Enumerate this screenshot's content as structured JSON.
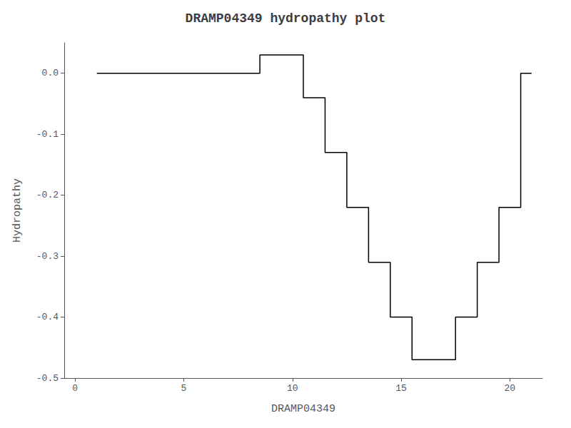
{
  "chart_data": {
    "type": "step",
    "title": "DRAMP04349 hydropathy plot",
    "xlabel": "DRAMP04349",
    "ylabel": "Hydropathy",
    "x": [
      1,
      2,
      3,
      4,
      5,
      6,
      7,
      8,
      9,
      10,
      11,
      12,
      13,
      14,
      15,
      16,
      17,
      18,
      19,
      20,
      21
    ],
    "values": [
      0.0,
      0.0,
      0.0,
      0.0,
      0.0,
      0.0,
      0.0,
      0.0,
      0.03,
      0.03,
      -0.04,
      -0.13,
      -0.22,
      -0.31,
      -0.4,
      -0.47,
      -0.47,
      -0.4,
      -0.31,
      -0.22,
      0.0
    ],
    "color": "#000000",
    "xlim": [
      -0.5,
      21.5
    ],
    "ylim": [
      -0.5,
      0.05
    ],
    "xticks": [
      0,
      5,
      10,
      15,
      20
    ],
    "yticks": [
      -0.5,
      -0.4,
      -0.3,
      -0.2,
      -0.1,
      {
        "value": 0.0,
        "label": "0.0"
      }
    ],
    "grid": false
  }
}
